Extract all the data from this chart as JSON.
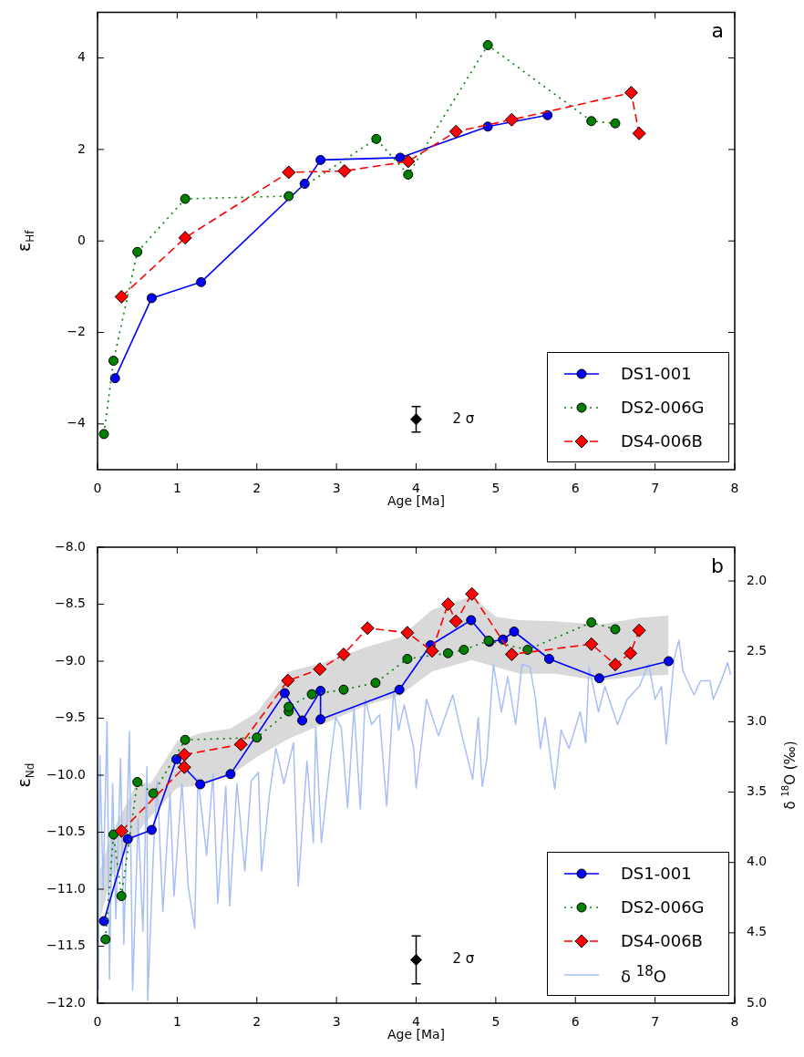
{
  "chart_data": [
    {
      "type": "line",
      "title": "a",
      "xlabel": "Age [Ma]",
      "ylabel": "ε$_{Hf}$",
      "xlim": [
        0,
        8
      ],
      "xticks": [
        0,
        1,
        2,
        3,
        4,
        5,
        6,
        7,
        8
      ],
      "ylim": [
        -5,
        5
      ],
      "yticks": [
        {
          "value": -4,
          "label": "−4"
        },
        {
          "value": -2,
          "label": "−2"
        },
        0,
        2,
        4
      ],
      "legend": "bottom right",
      "annotations": [
        "2 σ"
      ],
      "series": [
        {
          "name": "DS1-001",
          "color": "#0000ff",
          "marker": "circle",
          "line_style": "solid",
          "x": [
            0.22,
            0.68,
            1.3,
            2.6,
            2.8,
            3.8,
            4.9,
            5.65
          ],
          "values": [
            -3.0,
            -1.25,
            -0.9,
            1.25,
            1.77,
            1.82,
            2.5,
            2.75
          ]
        },
        {
          "name": "DS2-006G",
          "color": "#008000",
          "marker": "circle",
          "line_style": "dotted",
          "x": [
            0.08,
            0.2,
            0.5,
            1.1,
            2.4,
            3.5,
            3.9,
            4.9,
            6.2,
            6.5
          ],
          "values": [
            -4.22,
            -2.62,
            -0.24,
            0.92,
            0.98,
            2.23,
            1.45,
            4.28,
            2.62,
            2.57
          ]
        },
        {
          "name": "DS4-006B",
          "color": "#ff0000",
          "marker": "diamond",
          "line_style": "dashed",
          "x": [
            0.3,
            1.1,
            2.4,
            3.1,
            3.9,
            4.5,
            5.2,
            6.7,
            6.8
          ],
          "values": [
            -1.22,
            0.07,
            1.5,
            1.53,
            1.74,
            2.39,
            2.65,
            3.24,
            2.35
          ]
        },
        {
          "type": "scatter",
          "color": "#000000",
          "marker": "diamond",
          "x": [
            4
          ],
          "values": [
            -3.9
          ],
          "errors": [
            0.28
          ]
        }
      ]
    },
    {
      "type": "line",
      "title": "b",
      "xlabel": "Age [Ma]",
      "ylabel": "ε$_{Nd}$",
      "y2label": "δ $^{18}$O (‰)",
      "xlim": [
        0,
        8
      ],
      "xticks": [
        0,
        1,
        2,
        3,
        4,
        5,
        6,
        7,
        8
      ],
      "ylim": [
        -12,
        -8
      ],
      "yticks": [
        {
          "value": -12,
          "label": "−12.0"
        },
        {
          "value": -11.5,
          "label": "−11.5"
        },
        {
          "value": -11,
          "label": "−11.0"
        },
        {
          "value": -10.5,
          "label": "−10.5"
        },
        {
          "value": -10,
          "label": "−10.0"
        },
        {
          "value": -9.5,
          "label": "−9.5"
        },
        {
          "value": -9,
          "label": "−9.0"
        },
        {
          "value": -8.5,
          "label": "−8.5"
        },
        {
          "value": -8,
          "label": "−8.0"
        }
      ],
      "y2lim": [
        5,
        1.76
      ],
      "y2ticks": [
        {
          "value": 2,
          "label": "2.0"
        },
        2.5,
        {
          "value": 3,
          "label": "3.0"
        },
        3.5,
        {
          "value": 4,
          "label": "4.0"
        },
        4.5,
        {
          "value": 5,
          "label": "5.0"
        }
      ],
      "legend": "bottom right",
      "annotations": [
        "2 σ"
      ],
      "series": [
        {
          "color": "#d9d9d9",
          "x": [
            0.03,
            0.17,
            0.5,
            0.67,
            1.0,
            1.3,
            1.67,
            2.0,
            2.4,
            2.8,
            3.4,
            3.8,
            4.2,
            4.7,
            5.0,
            5.3,
            5.75,
            6.3,
            6.8,
            7.17
          ],
          "values": [
            null,
            null,
            null,
            null,
            null,
            null,
            null,
            null,
            null,
            null,
            null,
            null,
            null,
            null,
            null,
            null,
            null,
            null,
            null,
            null
          ],
          "lower": [
            -11.27,
            -10.9,
            -10.5,
            -10.36,
            -10.11,
            -10.09,
            -10.0,
            -9.84,
            -9.68,
            -9.56,
            -9.38,
            -9.3,
            -9.09,
            -8.99,
            -9.05,
            -9.11,
            -9.11,
            -9.17,
            -9.13,
            -9.12
          ],
          "upper": [
            -10.84,
            -10.52,
            -10.06,
            -10.07,
            -9.7,
            -9.63,
            -9.59,
            -9.45,
            -9.09,
            -9.02,
            -8.87,
            -8.79,
            -8.55,
            -8.43,
            -8.61,
            -8.64,
            -8.65,
            -8.68,
            -8.62,
            -8.6
          ]
        },
        {
          "name": "DS1-001",
          "color": "#0000ff",
          "marker": "circle",
          "line_style": "solid",
          "x": [
            0.08,
            0.38,
            0.68,
            0.99,
            1.29,
            1.67,
            2.35,
            2.57,
            2.8,
            2.8,
            3.79,
            4.18,
            4.69,
            4.92,
            5.09,
            5.23,
            5.67,
            6.3,
            7.17
          ],
          "values": [
            -11.28,
            -10.56,
            -10.48,
            -9.86,
            -10.08,
            -9.99,
            -9.28,
            -9.52,
            -9.26,
            -9.51,
            -9.25,
            -8.86,
            -8.64,
            -8.83,
            -8.81,
            -8.74,
            -8.98,
            -9.15,
            -9.0
          ]
        },
        {
          "name": "DS2-006G",
          "color": "#008000",
          "marker": "circle",
          "line_style": "dotted",
          "x": [
            0.1,
            0.2,
            0.3,
            0.5,
            0.7,
            1.1,
            2.0,
            2.4,
            2.4,
            2.69,
            3.09,
            3.49,
            3.89,
            4.4,
            4.6,
            4.91,
            5.4,
            6.2,
            6.5
          ],
          "values": [
            -11.44,
            -10.52,
            -11.06,
            -10.06,
            -10.16,
            -9.69,
            -9.67,
            -9.44,
            -9.4,
            -9.29,
            -9.25,
            -9.19,
            -8.98,
            -8.93,
            -8.9,
            -8.82,
            -8.9,
            -8.66,
            -8.72
          ]
        },
        {
          "name": "DS4-006B",
          "color": "#ff0000",
          "marker": "diamond",
          "line_style": "dashed",
          "x": [
            0.3,
            1.09,
            1.09,
            1.8,
            2.39,
            2.79,
            3.09,
            3.39,
            3.89,
            4.2,
            4.4,
            4.5,
            4.7,
            5.2,
            6.2,
            6.5,
            6.69,
            6.8
          ],
          "values": [
            -10.49,
            -9.93,
            -9.82,
            -9.73,
            -9.17,
            -9.07,
            -8.94,
            -8.71,
            -8.75,
            -8.91,
            -8.5,
            -8.65,
            -8.41,
            -8.94,
            -8.85,
            -9.03,
            -8.93,
            -8.73
          ]
        },
        {
          "name": "δ $^{18}$O",
          "color": "#a6bff5",
          "axis": "y2",
          "marker": "none",
          "line_style": "solid",
          "x": [
            0.01,
            0.03,
            0.07,
            0.12,
            0.15,
            0.19,
            0.23,
            0.29,
            0.33,
            0.4,
            0.44,
            0.51,
            0.57,
            0.62,
            0.63,
            0.7,
            0.75,
            0.82,
            0.91,
            0.96,
            1.06,
            1.14,
            1.22,
            1.26,
            1.37,
            1.45,
            1.51,
            1.61,
            1.66,
            1.75,
            1.85,
            1.93,
            2.02,
            2.06,
            2.16,
            2.24,
            2.34,
            2.46,
            2.52,
            2.63,
            2.71,
            2.74,
            2.81,
            2.93,
            2.99,
            3.06,
            3.14,
            3.22,
            3.3,
            3.36,
            3.44,
            3.54,
            3.63,
            3.72,
            3.78,
            3.85,
            3.97,
            4.0,
            4.13,
            4.28,
            4.46,
            4.56,
            4.71,
            4.78,
            4.83,
            4.89,
            4.97,
            5.07,
            5.15,
            5.25,
            5.33,
            5.43,
            5.5,
            5.56,
            5.62,
            5.74,
            5.82,
            5.92,
            6.06,
            6.13,
            6.17,
            6.29,
            6.37,
            6.53,
            6.65,
            6.8,
            6.92,
            7.0,
            7.08,
            7.14,
            7.16,
            7.24,
            7.3,
            7.35,
            7.49,
            7.57,
            7.69,
            7.73,
            7.83,
            7.91,
            7.95
          ],
          "values": [
            4.91,
            3.24,
            4.18,
            3.0,
            4.83,
            3.44,
            4.4,
            3.26,
            4.58,
            3.07,
            4.91,
            3.69,
            4.49,
            3.32,
            4.98,
            3.95,
            3.42,
            4.35,
            3.51,
            4.24,
            3.44,
            4.18,
            4.47,
            3.4,
            3.95,
            3.37,
            4.29,
            3.46,
            4.31,
            3.44,
            4.06,
            3.42,
            3.36,
            4.06,
            3.51,
            3.19,
            3.44,
            3.15,
            4.17,
            3.28,
            3.86,
            3.04,
            3.86,
            3.24,
            2.97,
            3.04,
            3.61,
            2.9,
            3.62,
            2.84,
            3.02,
            2.95,
            3.6,
            2.77,
            3.06,
            2.88,
            3.19,
            3.47,
            2.84,
            3.1,
            2.81,
            3.06,
            3.41,
            2.97,
            3.46,
            3.26,
            2.59,
            2.93,
            2.68,
            3.02,
            2.59,
            2.61,
            2.84,
            3.19,
            2.97,
            3.48,
            3.06,
            3.19,
            2.93,
            3.15,
            2.61,
            2.93,
            2.75,
            3.02,
            2.84,
            2.75,
            2.59,
            2.84,
            2.75,
            3.16,
            3.04,
            2.55,
            2.42,
            2.64,
            2.81,
            2.71,
            2.71,
            2.84,
            2.71,
            2.58,
            2.67
          ]
        },
        {
          "type": "scatter",
          "color": "#000000",
          "marker": "diamond",
          "x": [
            4
          ],
          "values": [
            -11.62
          ],
          "errors": [
            0.21
          ]
        }
      ]
    }
  ]
}
